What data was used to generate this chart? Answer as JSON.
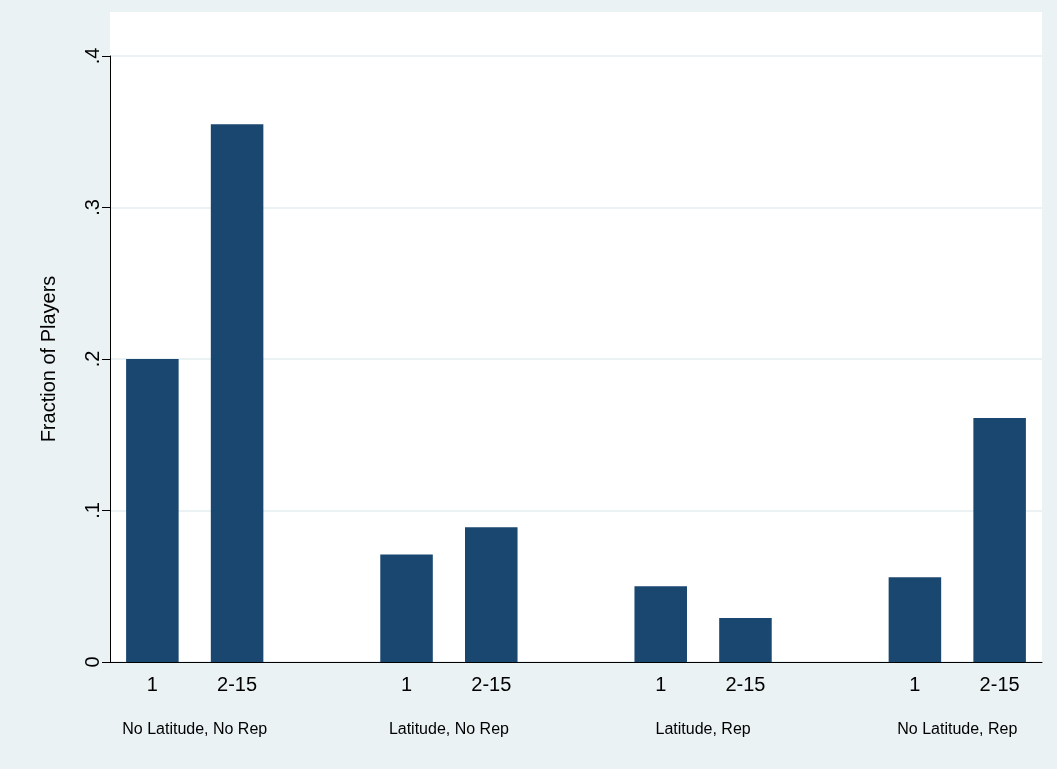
{
  "chart_data": {
    "type": "bar",
    "ylabel": "Fraction of Players",
    "categories": [
      "1",
      "2-15",
      null,
      "1",
      "2-15",
      null,
      "1",
      "2-15",
      null,
      "1",
      "2-15"
    ],
    "series": [
      {
        "color": "#1a476f",
        "values": [
          0.2,
          0.355,
          null,
          0.071,
          0.089,
          null,
          0.05,
          0.029,
          null,
          0.056,
          0.161
        ]
      }
    ],
    "annotations": [
      "No Latitude, No Rep",
      "Latitude, No Rep",
      "Latitude, Rep",
      "No Latitude, Rep"
    ],
    "ylim": [
      0,
      0.4
    ],
    "yticks": [
      {
        "value": 0,
        "label": "0"
      },
      {
        "value": 0.1,
        "label": ".1"
      },
      {
        "value": 0.2,
        "label": ".2"
      },
      {
        "value": 0.3,
        "label": ".3"
      },
      {
        "value": 0.4,
        "label": ".4"
      }
    ],
    "grid": "y"
  }
}
